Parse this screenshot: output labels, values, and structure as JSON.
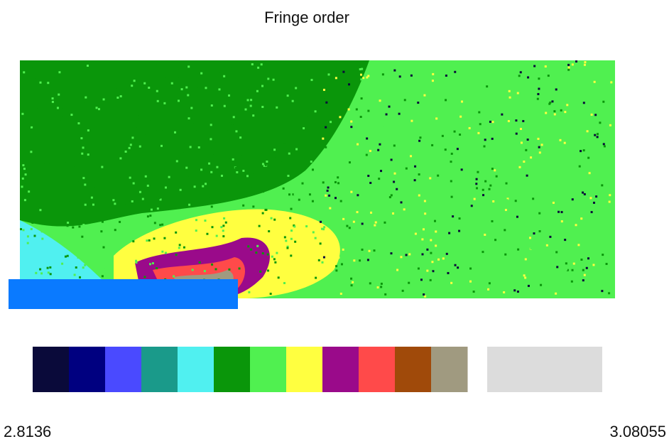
{
  "title": "Fringe order",
  "colorbar": {
    "colors": [
      "#0a0a3a",
      "#000080",
      "#4a4aff",
      "#1a9a8a",
      "#50f0f0",
      "#0a960a",
      "#50f050",
      "#ffff40",
      "#9a0a8a",
      "#ff4a4a",
      "#a04a0a",
      "#a09a80"
    ],
    "min_label": "2.8136",
    "max_label": "3.08055"
  }
}
